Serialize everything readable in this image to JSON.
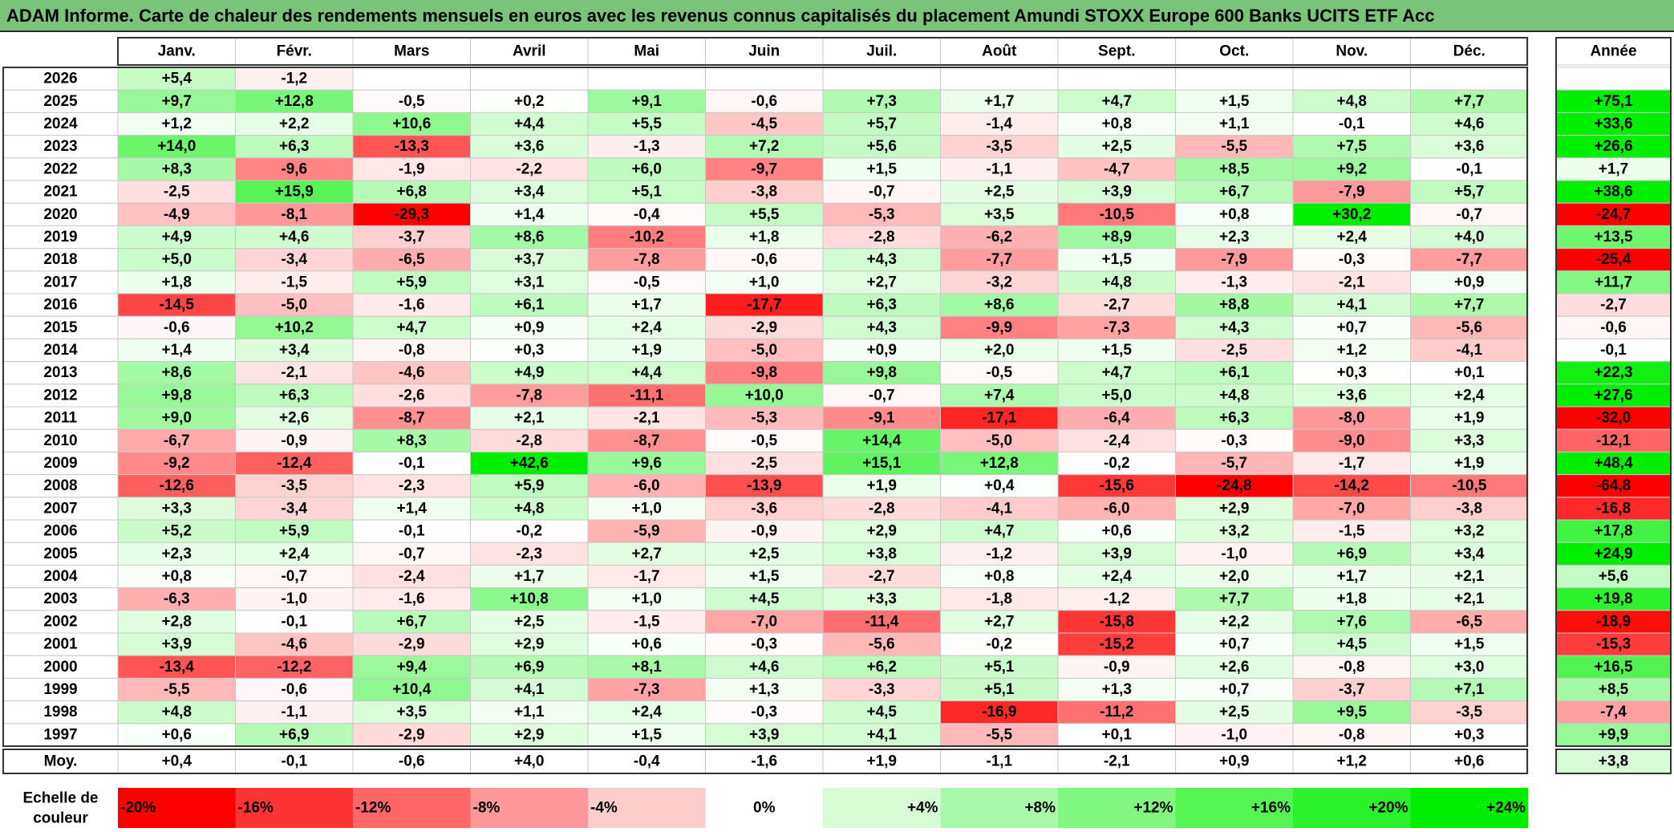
{
  "title": "ADAM Informe. Carte de chaleur des rendements mensuels en euros avec les revenus connus capitalisés du placement Amundi STOXX Europe 600 Banks UCITS ETF Acc",
  "chart_data": {
    "type": "heatmap",
    "columns": [
      "Janv.",
      "Févr.",
      "Mars",
      "Avril",
      "Mai",
      "Juin",
      "Juil.",
      "Août",
      "Sept.",
      "Oct.",
      "Nov.",
      "Déc."
    ],
    "year_header": "Année",
    "rows": [
      {
        "year": "2026",
        "months": [
          "+5,4",
          "-1,2",
          "",
          "",
          "",
          "",
          "",
          "",
          "",
          "",
          "",
          ""
        ],
        "annual": ""
      },
      {
        "year": "2025",
        "months": [
          "+9,7",
          "+12,8",
          "-0,5",
          "+0,2",
          "+9,1",
          "-0,6",
          "+7,3",
          "+1,7",
          "+4,7",
          "+1,5",
          "+4,8",
          "+7,7"
        ],
        "annual": "+75,1"
      },
      {
        "year": "2024",
        "months": [
          "+1,2",
          "+2,2",
          "+10,6",
          "+4,4",
          "+5,5",
          "-4,5",
          "+5,7",
          "-1,4",
          "+0,8",
          "+1,1",
          "-0,1",
          "+4,6"
        ],
        "annual": "+33,6"
      },
      {
        "year": "2023",
        "months": [
          "+14,0",
          "+6,3",
          "-13,3",
          "+3,6",
          "-1,3",
          "+7,2",
          "+5,6",
          "-3,5",
          "+2,5",
          "-5,5",
          "+7,5",
          "+3,6"
        ],
        "annual": "+26,6"
      },
      {
        "year": "2022",
        "months": [
          "+8,3",
          "-9,6",
          "-1,9",
          "-2,2",
          "+6,0",
          "-9,7",
          "+1,5",
          "-1,1",
          "-4,7",
          "+8,5",
          "+9,2",
          "-0,1"
        ],
        "annual": "+1,7"
      },
      {
        "year": "2021",
        "months": [
          "-2,5",
          "+15,9",
          "+6,8",
          "+3,4",
          "+5,1",
          "-3,8",
          "-0,7",
          "+2,5",
          "+3,9",
          "+6,7",
          "-7,9",
          "+5,7"
        ],
        "annual": "+38,6"
      },
      {
        "year": "2020",
        "months": [
          "-4,9",
          "-8,1",
          "-29,3",
          "+1,4",
          "-0,4",
          "+5,5",
          "-5,3",
          "+3,5",
          "-10,5",
          "+0,8",
          "+30,2",
          "-0,7"
        ],
        "annual": "-24,7"
      },
      {
        "year": "2019",
        "months": [
          "+4,9",
          "+4,6",
          "-3,7",
          "+8,6",
          "-10,2",
          "+1,8",
          "-2,8",
          "-6,2",
          "+8,9",
          "+2,3",
          "+2,4",
          "+4,0"
        ],
        "annual": "+13,5"
      },
      {
        "year": "2018",
        "months": [
          "+5,0",
          "-3,4",
          "-6,5",
          "+3,7",
          "-7,8",
          "-0,6",
          "+4,3",
          "-7,7",
          "+1,5",
          "-7,9",
          "-0,3",
          "-7,7"
        ],
        "annual": "-25,4"
      },
      {
        "year": "2017",
        "months": [
          "+1,8",
          "-1,5",
          "+5,9",
          "+3,1",
          "-0,5",
          "+1,0",
          "+2,7",
          "-3,2",
          "+4,8",
          "-1,3",
          "-2,1",
          "+0,9"
        ],
        "annual": "+11,7"
      },
      {
        "year": "2016",
        "months": [
          "-14,5",
          "-5,0",
          "-1,6",
          "+6,1",
          "+1,7",
          "-17,7",
          "+6,3",
          "+8,6",
          "-2,7",
          "+8,8",
          "+4,1",
          "+7,7"
        ],
        "annual": "-2,7"
      },
      {
        "year": "2015",
        "months": [
          "-0,6",
          "+10,2",
          "+4,7",
          "+0,9",
          "+2,4",
          "-2,9",
          "+4,3",
          "-9,9",
          "-7,3",
          "+4,3",
          "+0,7",
          "-5,6"
        ],
        "annual": "-0,6"
      },
      {
        "year": "2014",
        "months": [
          "+1,4",
          "+3,4",
          "-0,8",
          "+0,3",
          "+1,9",
          "-5,0",
          "+0,9",
          "+2,0",
          "+1,5",
          "-2,5",
          "+1,2",
          "-4,1"
        ],
        "annual": "-0,1"
      },
      {
        "year": "2013",
        "months": [
          "+8,6",
          "-2,1",
          "-4,6",
          "+4,9",
          "+4,4",
          "-9,8",
          "+9,8",
          "-0,5",
          "+4,7",
          "+6,1",
          "+0,3",
          "+0,1"
        ],
        "annual": "+22,3"
      },
      {
        "year": "2012",
        "months": [
          "+9,8",
          "+6,3",
          "-2,6",
          "-7,8",
          "-11,1",
          "+10,0",
          "-0,7",
          "+7,4",
          "+5,0",
          "+4,8",
          "+3,6",
          "+2,4"
        ],
        "annual": "+27,6"
      },
      {
        "year": "2011",
        "months": [
          "+9,0",
          "+2,6",
          "-8,7",
          "+2,1",
          "-2,1",
          "-5,3",
          "-9,1",
          "-17,1",
          "-6,4",
          "+6,3",
          "-8,0",
          "+1,9"
        ],
        "annual": "-32,0"
      },
      {
        "year": "2010",
        "months": [
          "-6,7",
          "-0,9",
          "+8,3",
          "-2,8",
          "-8,7",
          "-0,5",
          "+14,4",
          "-5,0",
          "-2,4",
          "-0,3",
          "-9,0",
          "+3,3"
        ],
        "annual": "-12,1"
      },
      {
        "year": "2009",
        "months": [
          "-9,2",
          "-12,4",
          "-0,1",
          "+42,6",
          "+9,6",
          "-2,5",
          "+15,1",
          "+12,8",
          "-0,2",
          "-5,7",
          "-1,7",
          "+1,9"
        ],
        "annual": "+48,4"
      },
      {
        "year": "2008",
        "months": [
          "-12,6",
          "-3,5",
          "-2,3",
          "+5,9",
          "-6,0",
          "-13,9",
          "+1,9",
          "+0,4",
          "-15,6",
          "-24,8",
          "-14,2",
          "-10,5"
        ],
        "annual": "-64,8"
      },
      {
        "year": "2007",
        "months": [
          "+3,3",
          "-3,4",
          "+1,4",
          "+4,8",
          "+1,0",
          "-3,6",
          "-2,8",
          "-4,1",
          "-6,0",
          "+2,9",
          "-7,0",
          "-3,8"
        ],
        "annual": "-16,8"
      },
      {
        "year": "2006",
        "months": [
          "+5,2",
          "+5,9",
          "-0,1",
          "-0,2",
          "-5,9",
          "-0,9",
          "+2,9",
          "+4,7",
          "+0,6",
          "+3,2",
          "-1,5",
          "+3,2"
        ],
        "annual": "+17,8"
      },
      {
        "year": "2005",
        "months": [
          "+2,3",
          "+2,4",
          "-0,7",
          "-2,3",
          "+2,7",
          "+2,5",
          "+3,8",
          "-1,2",
          "+3,9",
          "-1,0",
          "+6,9",
          "+3,4"
        ],
        "annual": "+24,9"
      },
      {
        "year": "2004",
        "months": [
          "+0,8",
          "-0,7",
          "-2,4",
          "+1,7",
          "-1,7",
          "+1,5",
          "-2,7",
          "+0,8",
          "+2,4",
          "+2,0",
          "+1,7",
          "+2,1"
        ],
        "annual": "+5,6"
      },
      {
        "year": "2003",
        "months": [
          "-6,3",
          "-1,0",
          "-1,6",
          "+10,8",
          "+1,0",
          "+4,5",
          "+3,3",
          "-1,8",
          "-1,2",
          "+7,7",
          "+1,8",
          "+2,1"
        ],
        "annual": "+19,8"
      },
      {
        "year": "2002",
        "months": [
          "+2,8",
          "-0,1",
          "+6,7",
          "+2,5",
          "-1,5",
          "-7,0",
          "-11,4",
          "+2,7",
          "-15,8",
          "+2,2",
          "+7,6",
          "-6,5"
        ],
        "annual": "-18,9"
      },
      {
        "year": "2001",
        "months": [
          "+3,9",
          "-4,6",
          "-2,9",
          "+2,9",
          "+0,6",
          "-0,3",
          "-5,6",
          "-0,2",
          "-15,2",
          "+0,7",
          "+4,5",
          "+1,5"
        ],
        "annual": "-15,3"
      },
      {
        "year": "2000",
        "months": [
          "-13,4",
          "-12,2",
          "+9,4",
          "+6,9",
          "+8,1",
          "+4,6",
          "+6,2",
          "+5,1",
          "-0,9",
          "+2,6",
          "-0,8",
          "+3,0"
        ],
        "annual": "+16,5"
      },
      {
        "year": "1999",
        "months": [
          "-5,5",
          "-0,6",
          "+10,4",
          "+4,1",
          "-7,3",
          "+1,3",
          "-3,3",
          "+5,1",
          "+1,3",
          "+0,7",
          "-3,7",
          "+7,1"
        ],
        "annual": "+8,5"
      },
      {
        "year": "1998",
        "months": [
          "+4,8",
          "-1,1",
          "+3,5",
          "+1,1",
          "+2,4",
          "-0,3",
          "+4,5",
          "-16,9",
          "-11,2",
          "+2,5",
          "+9,5",
          "-3,5"
        ],
        "annual": "-7,4"
      },
      {
        "year": "1997",
        "months": [
          "+0,6",
          "+6,9",
          "-2,9",
          "+2,9",
          "+1,5",
          "+3,9",
          "+4,1",
          "-5,5",
          "+0,1",
          "-1,0",
          "-0,8",
          "+0,3"
        ],
        "annual": "+9,9"
      }
    ],
    "average": {
      "label": "Moy.",
      "months": [
        "+0,4",
        "-0,1",
        "-0,6",
        "+4,0",
        "-0,4",
        "-1,6",
        "+1,9",
        "-1,1",
        "-2,1",
        "+0,9",
        "+1,2",
        "+0,6"
      ],
      "annual": "+3,8"
    },
    "color_scale": {
      "label_line1": "Echelle de",
      "label_line2": "couleur",
      "steps": [
        {
          "value": -20,
          "label": "-20%"
        },
        {
          "value": -16,
          "label": "-16%"
        },
        {
          "value": -12,
          "label": "-12%"
        },
        {
          "value": -8,
          "label": "-8%"
        },
        {
          "value": -4,
          "label": "-4%"
        },
        {
          "value": 0,
          "label": "0%"
        },
        {
          "value": 4,
          "label": "+4%"
        },
        {
          "value": 8,
          "label": "+8%"
        },
        {
          "value": 12,
          "label": "+12%"
        },
        {
          "value": 16,
          "label": "+16%"
        },
        {
          "value": 20,
          "label": "+20%"
        },
        {
          "value": 24,
          "label": "+24%"
        }
      ],
      "negative_max_color": "#ff0000",
      "positive_max_color": "#00ee00",
      "zero_color": "#ffffff",
      "saturation_negative": -20,
      "saturation_positive": 24
    }
  }
}
